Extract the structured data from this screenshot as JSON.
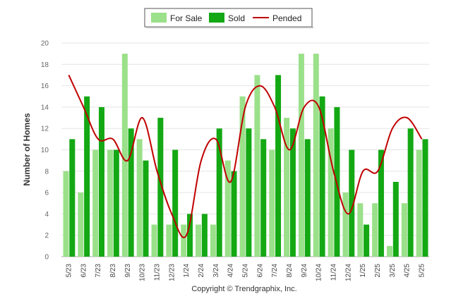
{
  "chart_data": {
    "type": "bar",
    "ylabel": "Number of Homes",
    "ylim": [
      0,
      20
    ],
    "yticks": [
      0,
      2,
      4,
      6,
      8,
      10,
      12,
      14,
      16,
      18,
      20
    ],
    "grid": true,
    "legend_position": "top-center",
    "categories": [
      "5/23",
      "6/23",
      "7/23",
      "8/23",
      "9/23",
      "10/23",
      "11/23",
      "12/23",
      "1/24",
      "2/24",
      "3/24",
      "4/24",
      "5/24",
      "6/24",
      "7/24",
      "8/24",
      "9/24",
      "10/24",
      "11/24",
      "12/24",
      "1/25",
      "2/25",
      "3/25",
      "4/25",
      "5/25"
    ],
    "series": [
      {
        "name": "For Sale",
        "kind": "bar",
        "color": "#9be08a",
        "values": [
          8,
          6,
          10,
          10,
          19,
          11,
          3,
          3,
          3,
          3,
          3,
          9,
          15,
          17,
          10,
          13,
          19,
          19,
          12,
          6,
          5,
          5,
          1,
          5,
          10
        ]
      },
      {
        "name": "Sold",
        "kind": "bar",
        "color": "#14a814",
        "values": [
          11,
          15,
          14,
          10,
          12,
          9,
          13,
          10,
          4,
          4,
          12,
          8,
          12,
          11,
          17,
          12,
          11,
          15,
          14,
          10,
          3,
          10,
          7,
          12,
          11
        ]
      },
      {
        "name": "Pended",
        "kind": "line",
        "color": "#c00000",
        "values": [
          17,
          14,
          11,
          11,
          9,
          13,
          8,
          4,
          2,
          9,
          11,
          7,
          14,
          16,
          14,
          10,
          14,
          14,
          8,
          4,
          8,
          8,
          12,
          13,
          11
        ]
      }
    ]
  },
  "footer": "Copyright © Trendgraphix, Inc."
}
